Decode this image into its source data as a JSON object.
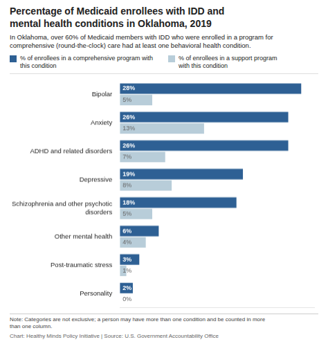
{
  "chart_data": {
    "type": "bar",
    "orientation": "horizontal",
    "title": "Percentage of Medicaid enrollees with IDD and\nmental health conditions in Oklahoma, 2019",
    "subtitle": "In Oklahoma, over 60% of Medicaid members with IDD who were enrolled in a program for comprehensive (round-the-clock) care had at least one behavioral health condition.",
    "categories": [
      "Bipolar",
      "Anxiety",
      "ADHD and related disorders",
      "Depressive",
      "Schizophrenia and other psychotic\ndisorders",
      "Other mental health",
      "Post-traumatic stress",
      "Personality"
    ],
    "series": [
      {
        "name": "% of enrollees in a comprehensive program with this condition",
        "color": "#2E6094",
        "values": [
          28,
          26,
          26,
          19,
          18,
          6,
          3,
          2
        ],
        "value_labels": [
          "28%",
          "26%",
          "26%",
          "19%",
          "18%",
          "6%",
          "3%",
          "2%"
        ]
      },
      {
        "name": "% of enrollees in a support program\nwith this condition",
        "color": "#B8CDD9",
        "values": [
          5,
          13,
          7,
          8,
          5,
          4,
          1,
          0
        ],
        "value_labels": [
          "5%",
          "13%",
          "7%",
          "8%",
          "5%",
          "4%",
          "1%",
          "0%"
        ]
      }
    ],
    "xlim": [
      0,
      30
    ],
    "grid": false,
    "legend": "top",
    "data_labels": true,
    "tick_labels": "y",
    "annotations": [
      "Note: Categories are not exclusive; a person may have more than one condition and be counted in more\nthan one column.",
      "Chart: Healthy Minds Policy Initiative  |  Source: U.S. Government Accountability Office"
    ]
  }
}
